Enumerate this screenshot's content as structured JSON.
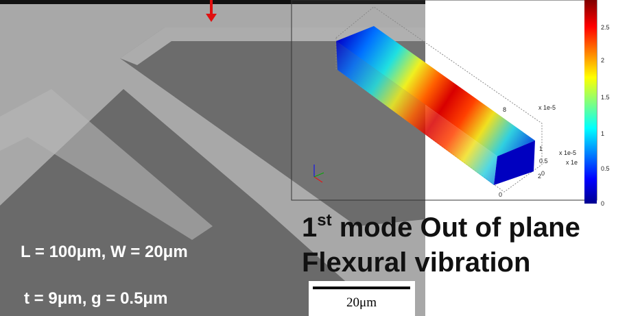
{
  "labels": {
    "dimensions_1": "L = 100μm, W = 20μm",
    "dimensions_2": "t = 9μm, g = 0.5μm"
  },
  "scale_bar": {
    "label": "20μm"
  },
  "caption": {
    "line1": {
      "number": "1",
      "superscript": "st",
      "text": " mode Out of plane"
    },
    "line2": "Flexural vibration"
  },
  "simulation": {
    "colorbar_ticks": [
      "2.5",
      "2",
      "1.5",
      "1",
      "0.5",
      "0"
    ],
    "axis_labels": [
      "x 1e-5",
      "x 1e-5",
      "x 1e"
    ],
    "axis_ticks": [
      "8",
      "1",
      "0.5",
      "0",
      "0",
      "2"
    ]
  }
}
